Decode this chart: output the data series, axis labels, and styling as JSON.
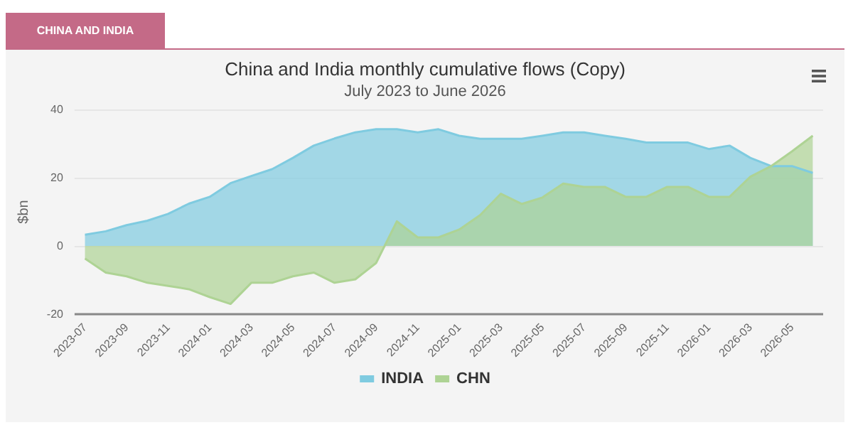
{
  "chart_data": {
    "type": "area",
    "title": "China and India monthly cumulative flows (Copy)",
    "subtitle": "July 2023 to June 2026",
    "ylabel": "$bn",
    "annotations": [
      "CHINA AND INDIA"
    ],
    "categories": [
      "2023-07",
      null,
      "2023-09",
      null,
      "2023-11",
      null,
      "2024-01",
      null,
      "2024-03",
      null,
      "2024-05",
      null,
      "2024-07",
      null,
      "2024-09",
      null,
      "2024-11",
      null,
      "2025-01",
      null,
      "2025-03",
      null,
      "2025-05",
      null,
      "2025-07",
      null,
      "2025-09",
      null,
      "2025-11",
      null,
      "2026-01",
      null,
      "2026-03",
      null,
      "2026-05",
      null
    ],
    "series": [
      {
        "name": "INDIA",
        "color": "#7fcbe0",
        "values": [
          3.3,
          4.3,
          6.1,
          7.4,
          9.4,
          12.4,
          14.4,
          18.4,
          20.5,
          22.5,
          25.8,
          29.4,
          31.5,
          33.3,
          34.2,
          34.2,
          33.3,
          34.2,
          32.3,
          31.4,
          31.4,
          31.4,
          32.3,
          33.3,
          33.3,
          32.3,
          31.4,
          30.3,
          30.3,
          30.3,
          28.4,
          29.4,
          25.8,
          23.4,
          23.4,
          21.4
        ]
      },
      {
        "name": "CHN",
        "color": "#aed394",
        "values": [
          -3.7,
          -7.8,
          -8.9,
          -10.8,
          -11.7,
          -12.7,
          -15,
          -17,
          -10.8,
          -10.8,
          -8.9,
          -7.8,
          -10.8,
          -9.8,
          -5,
          7.2,
          2.5,
          2.5,
          4.8,
          9,
          15.3,
          12.3,
          14.2,
          18.3,
          17.3,
          17.3,
          14.4,
          14.4,
          17.3,
          17.3,
          14.4,
          14.4,
          20.3,
          23.4,
          27.7,
          32.3
        ]
      }
    ],
    "ylim": [
      -20,
      40
    ],
    "yticks": [
      -20,
      0,
      20,
      40
    ],
    "grid": "y",
    "legend": "bottom",
    "marker": "none",
    "line_style": "solid"
  }
}
